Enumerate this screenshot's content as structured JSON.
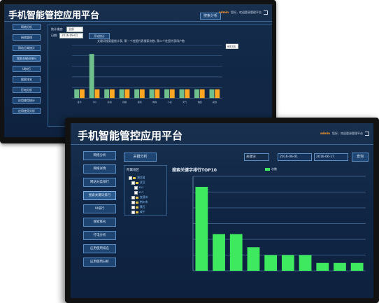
{
  "back": {
    "title": "手机智能管控应用平台",
    "top_button": "搜索分析",
    "welcome": {
      "user": "admin",
      "text": "您好，欢迎登录管理平台"
    },
    "sidebar": [
      "网络分析",
      "网络管理",
      "网站分类统计",
      "搜索关键词排行",
      "UI排行",
      "搜索排名",
      "打电分析",
      "应用使用统计",
      "应用使用分析"
    ],
    "filter": {
      "type_label": "统计维度:",
      "type_value": "全部",
      "date_label": "日期:",
      "date_value": "2016-09-01",
      "query_button": "开始统计"
    },
    "chart_title": "关键词搜索量统计表, 第一个柱图代表搜索次数, 第二个柱图代表用户数",
    "legend_box": "搜索次数",
    "chart_data": {
      "type": "bar",
      "categories": [
        "音乐",
        "QQ",
        "新闻",
        "视频",
        "游戏",
        "购物",
        "小说",
        "天气",
        "地图",
        "其他"
      ],
      "series": [
        {
          "values": [
            1,
            5,
            1,
            1,
            1,
            1,
            1,
            1,
            1,
            1
          ],
          "color": "#6fc08d"
        },
        {
          "values": [
            1,
            1,
            1,
            1,
            1,
            1,
            1,
            1,
            1,
            1
          ],
          "color": "#ffa722"
        }
      ],
      "ylim": [
        0,
        6
      ]
    }
  },
  "front": {
    "title": "手机智能管控应用平台",
    "welcome": {
      "user": "admin",
      "text": "您好，欢迎登录管理平台"
    },
    "sidebar": [
      "网络分析",
      "网络详情",
      "网站分类排行",
      "搜索关键词排行",
      "UI排行",
      "搜索排名",
      "打电分析",
      "应用使用排名",
      "应用使用分析"
    ],
    "tab": "关键分析",
    "filter": {
      "keyword_label": "关键词",
      "start_date": "2016-06-01",
      "end_date": "2016-06-17",
      "query_button": "查询"
    },
    "tree": {
      "title": "所属地区",
      "items": [
        "湖北省",
        "武汉",
        "101",
        "127",
        "宜昌市",
        "荆州市",
        "黄石",
        "咸宁",
        "孝感市",
        "襄阳"
      ]
    },
    "chart_title": "搜索关键字排行TOP10",
    "legend": "次数",
    "chart_data": {
      "type": "bar",
      "categories": [
        "1",
        "2",
        "3",
        "4",
        "5",
        "6",
        "7",
        "8",
        "9",
        "10"
      ],
      "series": [
        {
          "values": [
            16,
            7,
            7,
            4.5,
            3,
            3,
            3,
            1.5,
            1.5,
            1.5
          ],
          "color": "#3ee85f"
        }
      ],
      "ylim": [
        0,
        18
      ],
      "grid": true
    }
  }
}
